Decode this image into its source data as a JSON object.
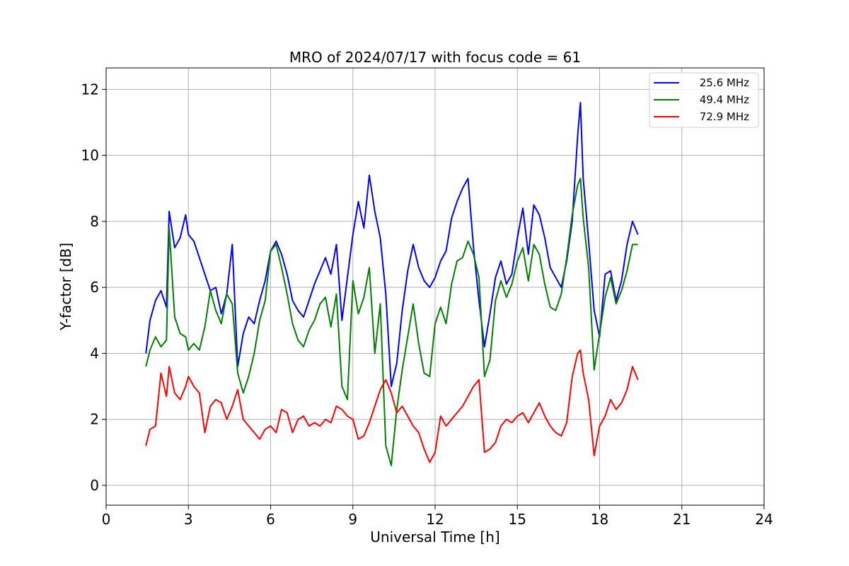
{
  "chart_data": {
    "type": "line",
    "title": "MRO of 2024/07/17 with focus code = 61",
    "xlabel": "Universal Time [h]",
    "ylabel": "Y-factor [dB]",
    "xlim": [
      0,
      24
    ],
    "ylim": [
      -0.6,
      12.65
    ],
    "xticks": [
      0,
      3,
      6,
      9,
      12,
      15,
      18,
      21,
      24
    ],
    "xtick_labels": [
      "0",
      "3",
      "6",
      "9",
      "12",
      "15",
      "18",
      "21",
      "24"
    ],
    "yticks": [
      0,
      2,
      4,
      6,
      8,
      10,
      12
    ],
    "ytick_labels": [
      "0",
      "2",
      "4",
      "6",
      "8",
      "10",
      "12"
    ],
    "grid": true,
    "legend_position": "top-right",
    "series": [
      {
        "name": "25.6 MHz",
        "color": "#0000ff",
        "x": [
          1.45,
          1.6,
          1.8,
          2.0,
          2.2,
          2.3,
          2.5,
          2.7,
          2.9,
          3.0,
          3.2,
          3.4,
          3.6,
          3.8,
          4.0,
          4.2,
          4.4,
          4.6,
          4.8,
          5.0,
          5.2,
          5.4,
          5.6,
          5.8,
          6.0,
          6.2,
          6.4,
          6.6,
          6.8,
          7.0,
          7.2,
          7.4,
          7.6,
          7.8,
          8.0,
          8.2,
          8.4,
          8.6,
          8.8,
          9.0,
          9.2,
          9.4,
          9.6,
          9.8,
          10.0,
          10.2,
          10.4,
          10.6,
          10.8,
          11.0,
          11.2,
          11.4,
          11.6,
          11.8,
          12.0,
          12.2,
          12.4,
          12.6,
          12.8,
          13.0,
          13.2,
          13.4,
          13.6,
          13.8,
          14.0,
          14.2,
          14.4,
          14.6,
          14.8,
          15.0,
          15.2,
          15.4,
          15.6,
          15.8,
          16.0,
          16.2,
          16.4,
          16.6,
          16.8,
          17.0,
          17.2,
          17.3,
          17.4,
          17.6,
          17.8,
          18.0,
          18.2,
          18.4,
          18.6,
          18.8,
          19.0,
          19.2,
          19.4
        ],
        "y": [
          4.0,
          5.0,
          5.6,
          5.9,
          5.4,
          8.3,
          7.2,
          7.5,
          8.2,
          7.6,
          7.4,
          6.9,
          6.4,
          5.9,
          6.0,
          5.2,
          5.8,
          7.3,
          3.6,
          4.6,
          5.1,
          4.9,
          5.6,
          6.2,
          7.1,
          7.4,
          7.0,
          6.4,
          5.6,
          5.3,
          5.1,
          5.6,
          6.1,
          6.5,
          6.9,
          6.4,
          7.3,
          5.0,
          6.3,
          7.6,
          8.6,
          7.8,
          9.4,
          8.3,
          7.5,
          5.8,
          3.0,
          3.7,
          5.3,
          6.5,
          7.3,
          6.6,
          6.2,
          6.0,
          6.3,
          6.8,
          7.1,
          8.1,
          8.6,
          9.0,
          9.3,
          7.2,
          5.6,
          4.2,
          5.2,
          6.3,
          6.8,
          6.1,
          6.4,
          7.5,
          8.4,
          7.0,
          8.5,
          8.2,
          7.5,
          6.6,
          6.3,
          6.0,
          6.8,
          8.0,
          10.6,
          11.6,
          9.3,
          7.4,
          5.3,
          4.5,
          6.4,
          6.5,
          5.6,
          6.2,
          7.3,
          8.0,
          7.6
        ]
      },
      {
        "name": "49.4 MHz",
        "color": "#008000",
        "x": [
          1.45,
          1.6,
          1.8,
          2.0,
          2.2,
          2.3,
          2.5,
          2.7,
          2.9,
          3.0,
          3.2,
          3.4,
          3.6,
          3.8,
          4.0,
          4.2,
          4.4,
          4.6,
          4.8,
          5.0,
          5.2,
          5.4,
          5.6,
          5.8,
          6.0,
          6.2,
          6.4,
          6.6,
          6.8,
          7.0,
          7.2,
          7.4,
          7.6,
          7.8,
          8.0,
          8.2,
          8.4,
          8.6,
          8.8,
          9.0,
          9.2,
          9.4,
          9.6,
          9.8,
          10.0,
          10.2,
          10.4,
          10.6,
          10.8,
          11.0,
          11.2,
          11.4,
          11.6,
          11.8,
          12.0,
          12.2,
          12.4,
          12.6,
          12.8,
          13.0,
          13.2,
          13.4,
          13.6,
          13.8,
          14.0,
          14.2,
          14.4,
          14.6,
          14.8,
          15.0,
          15.2,
          15.4,
          15.6,
          15.8,
          16.0,
          16.2,
          16.4,
          16.6,
          16.8,
          17.0,
          17.2,
          17.3,
          17.4,
          17.6,
          17.8,
          18.0,
          18.2,
          18.4,
          18.6,
          18.8,
          19.0,
          19.2,
          19.4
        ],
        "y": [
          3.6,
          4.1,
          4.5,
          4.2,
          4.4,
          7.8,
          5.1,
          4.6,
          4.5,
          4.1,
          4.3,
          4.1,
          4.8,
          5.9,
          5.3,
          4.9,
          5.8,
          5.5,
          3.4,
          2.8,
          3.3,
          4.0,
          5.0,
          5.6,
          7.1,
          7.3,
          6.6,
          5.8,
          4.9,
          4.4,
          4.2,
          4.7,
          5.0,
          5.5,
          5.7,
          4.8,
          5.8,
          3.0,
          2.6,
          6.2,
          5.2,
          5.7,
          6.6,
          4.0,
          5.5,
          1.2,
          0.6,
          2.3,
          3.5,
          4.5,
          5.5,
          4.3,
          3.4,
          3.3,
          4.9,
          5.4,
          4.9,
          6.1,
          6.8,
          6.9,
          7.4,
          7.0,
          6.3,
          3.3,
          3.8,
          5.6,
          6.2,
          5.7,
          6.1,
          6.8,
          7.2,
          6.2,
          7.3,
          7.0,
          6.1,
          5.4,
          5.3,
          5.8,
          6.9,
          8.2,
          9.1,
          9.3,
          8.1,
          6.6,
          3.5,
          4.6,
          5.7,
          6.3,
          5.5,
          5.9,
          6.5,
          7.3,
          7.3
        ]
      },
      {
        "name": "72.9 MHz",
        "color": "#ff0000",
        "x": [
          1.45,
          1.6,
          1.8,
          2.0,
          2.2,
          2.3,
          2.5,
          2.7,
          2.9,
          3.0,
          3.2,
          3.4,
          3.6,
          3.8,
          4.0,
          4.2,
          4.4,
          4.6,
          4.8,
          5.0,
          5.2,
          5.4,
          5.6,
          5.8,
          6.0,
          6.2,
          6.4,
          6.6,
          6.8,
          7.0,
          7.2,
          7.4,
          7.6,
          7.8,
          8.0,
          8.2,
          8.4,
          8.6,
          8.8,
          9.0,
          9.2,
          9.4,
          9.6,
          9.8,
          10.0,
          10.2,
          10.4,
          10.6,
          10.8,
          11.0,
          11.2,
          11.4,
          11.6,
          11.8,
          12.0,
          12.2,
          12.4,
          12.6,
          12.8,
          13.0,
          13.2,
          13.4,
          13.6,
          13.8,
          14.0,
          14.2,
          14.4,
          14.6,
          14.8,
          15.0,
          15.2,
          15.4,
          15.6,
          15.8,
          16.0,
          16.2,
          16.4,
          16.6,
          16.8,
          17.0,
          17.2,
          17.3,
          17.4,
          17.6,
          17.8,
          18.0,
          18.2,
          18.4,
          18.6,
          18.8,
          19.0,
          19.2,
          19.4
        ],
        "y": [
          1.2,
          1.7,
          1.8,
          3.4,
          2.7,
          3.6,
          2.8,
          2.6,
          3.0,
          3.3,
          3.0,
          2.8,
          1.6,
          2.4,
          2.6,
          2.5,
          2.0,
          2.4,
          2.9,
          2.0,
          1.8,
          1.6,
          1.4,
          1.7,
          1.8,
          1.6,
          2.3,
          2.2,
          1.6,
          2.0,
          2.1,
          1.8,
          1.9,
          1.8,
          2.0,
          1.9,
          2.4,
          2.3,
          2.1,
          2.0,
          1.4,
          1.5,
          1.9,
          2.4,
          2.9,
          3.2,
          2.8,
          2.2,
          2.4,
          2.1,
          1.8,
          1.6,
          1.1,
          0.7,
          1.0,
          2.1,
          1.8,
          2.0,
          2.2,
          2.4,
          2.7,
          3.0,
          3.2,
          1.0,
          1.1,
          1.3,
          1.8,
          2.0,
          1.9,
          2.1,
          2.2,
          1.9,
          2.2,
          2.5,
          2.1,
          1.8,
          1.6,
          1.5,
          1.9,
          3.3,
          4.0,
          4.1,
          3.4,
          2.6,
          0.9,
          1.8,
          2.1,
          2.6,
          2.3,
          2.5,
          2.9,
          3.6,
          3.2
        ]
      }
    ]
  }
}
